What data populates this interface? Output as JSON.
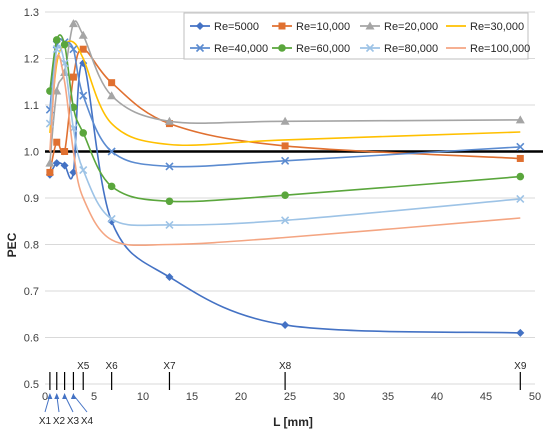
{
  "chart_data": {
    "type": "line",
    "title": "",
    "xlabel": "L [mm]",
    "ylabel": "PEC",
    "xlim": [
      0,
      50
    ],
    "ylim": [
      0.5,
      1.3
    ],
    "x_ticks": [
      "0",
      "5",
      "10",
      "15",
      "20",
      "25",
      "30",
      "35",
      "40",
      "45",
      "50"
    ],
    "y_ticks": [
      "0.5",
      "0.6",
      "0.7",
      "0.8",
      "0.9",
      "1.0",
      "1.1",
      "1.2",
      "1.3"
    ],
    "grid": "horizontal",
    "legend_position": "top-right",
    "reference_line": {
      "y": 1.0,
      "color": "#000000"
    },
    "position_markers": [
      {
        "label": "X1",
        "x": 0.5
      },
      {
        "label": "X2",
        "x": 1.2
      },
      {
        "label": "X3",
        "x": 2.0
      },
      {
        "label": "X4",
        "x": 2.9
      },
      {
        "label": "X5",
        "x": 3.9
      },
      {
        "label": "X6",
        "x": 6.8
      },
      {
        "label": "X7",
        "x": 12.7
      },
      {
        "label": "X8",
        "x": 24.5
      },
      {
        "label": "X9",
        "x": 48.5
      }
    ],
    "x": [
      0.5,
      1.2,
      2.0,
      2.9,
      3.9,
      6.8,
      12.7,
      24.5,
      48.5
    ],
    "series": [
      {
        "name": "Re=5000",
        "color": "#4472C4",
        "marker": "diamond",
        "values": [
          0.95,
          0.975,
          0.97,
          0.955,
          1.19,
          0.85,
          0.73,
          0.627,
          0.61
        ]
      },
      {
        "name": "Re=10,000",
        "color": "#E07030",
        "marker": "square",
        "values": [
          0.955,
          1.02,
          1.0,
          1.16,
          1.22,
          1.148,
          1.06,
          1.012,
          0.985
        ]
      },
      {
        "name": "Re=20,000",
        "color": "#A5A5A5",
        "marker": "triangle",
        "values": [
          0.975,
          1.13,
          1.17,
          1.275,
          1.25,
          1.12,
          1.065,
          1.065,
          1.068
        ]
      },
      {
        "name": "Re=30,000",
        "color": "#FFC000",
        "marker": "none",
        "values": [
          1.04,
          1.19,
          1.23,
          1.235,
          1.2,
          1.06,
          1.015,
          1.025,
          1.042
        ]
      },
      {
        "name": "Re=40,000",
        "color": "#5B8BD0",
        "marker": "x",
        "values": [
          1.09,
          1.23,
          1.235,
          1.22,
          1.12,
          1.0,
          0.968,
          0.98,
          1.01
        ]
      },
      {
        "name": "Re=60,000",
        "color": "#5AA63C",
        "marker": "circle",
        "values": [
          1.13,
          1.24,
          1.23,
          1.095,
          1.04,
          0.925,
          0.893,
          0.906,
          0.946
        ]
      },
      {
        "name": "Re=80,000",
        "color": "#9DC3E6",
        "marker": "x",
        "values": [
          1.06,
          1.22,
          1.19,
          1.05,
          0.96,
          0.855,
          0.842,
          0.852,
          0.898
        ]
      },
      {
        "name": "Re=100,000",
        "color": "#F4A582",
        "marker": "none",
        "values": [
          1.0,
          1.2,
          1.15,
          1.0,
          0.9,
          0.81,
          0.8,
          0.815,
          0.857
        ]
      }
    ]
  }
}
